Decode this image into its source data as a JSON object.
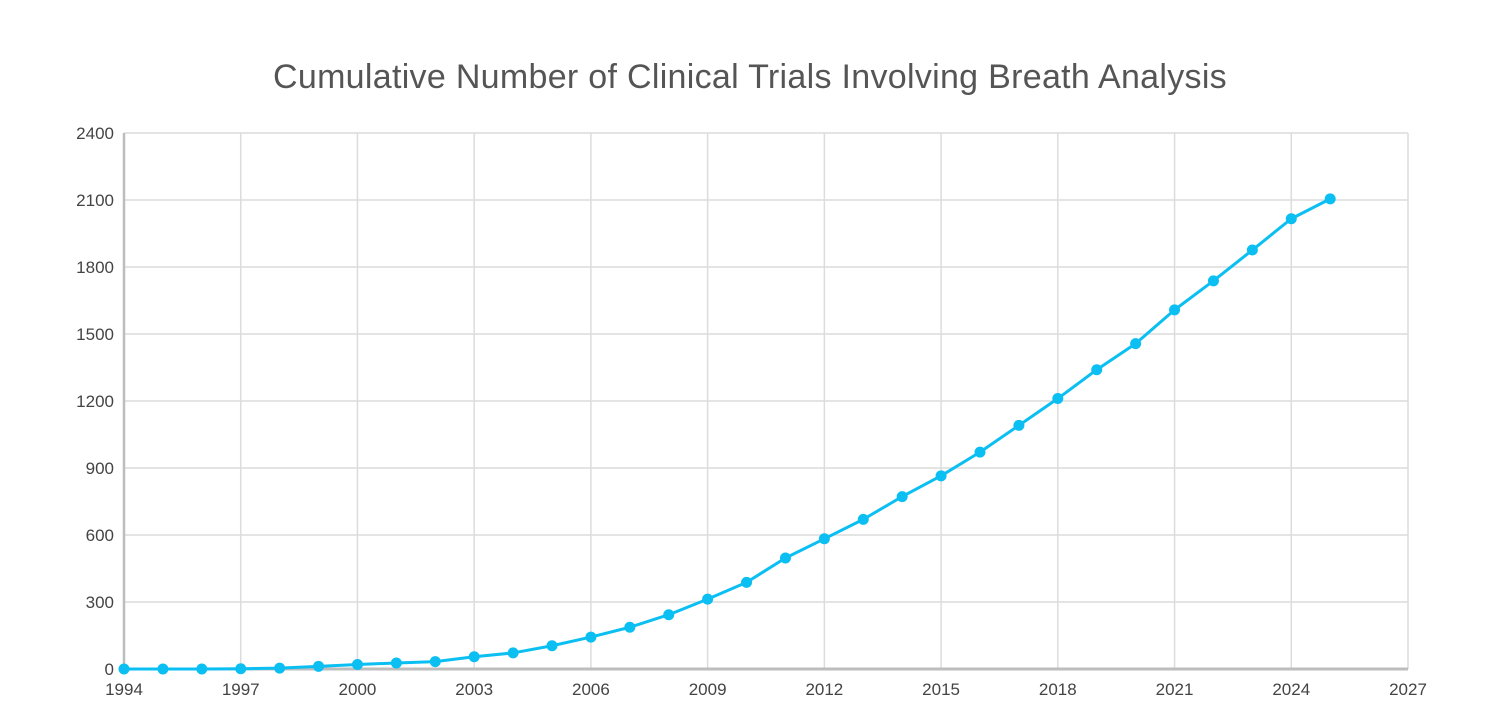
{
  "chart_data": {
    "type": "line",
    "title": "Cumulative Number of Clinical Trials Involving Breath Analysis",
    "xlabel": "",
    "ylabel": "",
    "xlim": [
      1994,
      2027
    ],
    "ylim": [
      0,
      2400
    ],
    "x_ticks": [
      "1994",
      "1997",
      "2000",
      "2003",
      "2006",
      "2009",
      "2012",
      "2015",
      "2018",
      "2021",
      "2024",
      "2027"
    ],
    "y_ticks": [
      "0",
      "300",
      "600",
      "900",
      "1200",
      "1500",
      "1800",
      "2100",
      "2400"
    ],
    "grid": true,
    "legend": "none",
    "series": [
      {
        "color": "#0bbff2",
        "x": [
          1994,
          1995,
          1996,
          1997,
          1998,
          1999,
          2000,
          2001,
          2002,
          2003,
          2004,
          2005,
          2006,
          2007,
          2008,
          2009,
          2010,
          2011,
          2012,
          2013,
          2014,
          2015,
          2016,
          2017,
          2018,
          2019,
          2020,
          2021,
          2022,
          2023,
          2024,
          2025
        ],
        "values": [
          0,
          0,
          0,
          1,
          4,
          12,
          20,
          27,
          33,
          55,
          72,
          104,
          143,
          187,
          243,
          313,
          388,
          497,
          583,
          670,
          772,
          865,
          971,
          1091,
          1211,
          1340,
          1457,
          1608,
          1738,
          1876,
          2016,
          2105
        ]
      }
    ]
  }
}
